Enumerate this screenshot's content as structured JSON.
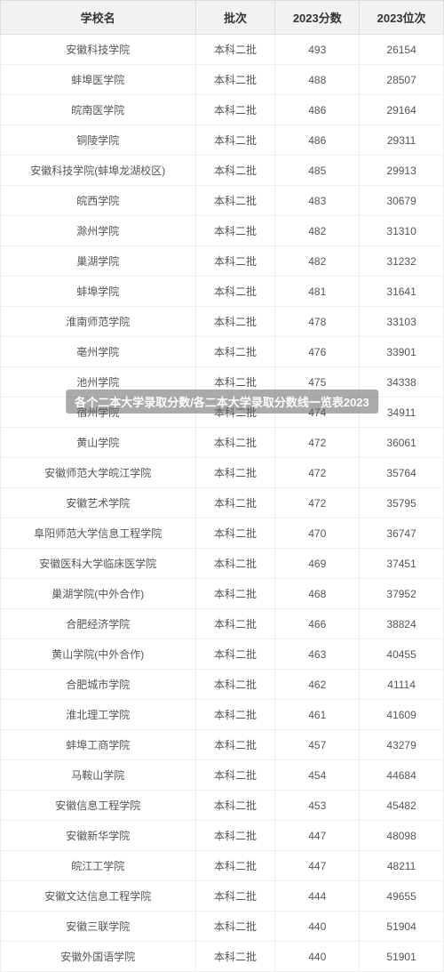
{
  "table": {
    "headers": {
      "school": "学校名",
      "batch": "批次",
      "score": "2023分数",
      "rank": "2023位次"
    },
    "batch_label": "本科二批",
    "rows": [
      {
        "school": "安徽科技学院",
        "score": "493",
        "rank": "26154"
      },
      {
        "school": "蚌埠医学院",
        "score": "488",
        "rank": "28507"
      },
      {
        "school": "皖南医学院",
        "score": "486",
        "rank": "29164"
      },
      {
        "school": "铜陵学院",
        "score": "486",
        "rank": "29311"
      },
      {
        "school": "安徽科技学院(蚌埠龙湖校区)",
        "score": "485",
        "rank": "29913"
      },
      {
        "school": "皖西学院",
        "score": "483",
        "rank": "30679"
      },
      {
        "school": "滁州学院",
        "score": "482",
        "rank": "31310"
      },
      {
        "school": "巢湖学院",
        "score": "482",
        "rank": "31232"
      },
      {
        "school": "蚌埠学院",
        "score": "481",
        "rank": "31641"
      },
      {
        "school": "淮南师范学院",
        "score": "478",
        "rank": "33103"
      },
      {
        "school": "亳州学院",
        "score": "476",
        "rank": "33901"
      },
      {
        "school": "池州学院",
        "score": "475",
        "rank": "34338"
      },
      {
        "school": "宿州学院",
        "score": "474",
        "rank": "34911"
      },
      {
        "school": "黄山学院",
        "score": "472",
        "rank": "36061"
      },
      {
        "school": "安徽师范大学皖江学院",
        "score": "472",
        "rank": "35764"
      },
      {
        "school": "安徽艺术学院",
        "score": "472",
        "rank": "35795"
      },
      {
        "school": "阜阳师范大学信息工程学院",
        "score": "470",
        "rank": "36747"
      },
      {
        "school": "安徽医科大学临床医学院",
        "score": "469",
        "rank": "37451"
      },
      {
        "school": "巢湖学院(中外合作)",
        "score": "468",
        "rank": "37952"
      },
      {
        "school": "合肥经济学院",
        "score": "466",
        "rank": "38824"
      },
      {
        "school": "黄山学院(中外合作)",
        "score": "463",
        "rank": "40455"
      },
      {
        "school": "合肥城市学院",
        "score": "462",
        "rank": "41114"
      },
      {
        "school": "淮北理工学院",
        "score": "461",
        "rank": "41609"
      },
      {
        "school": "蚌埠工商学院",
        "score": "457",
        "rank": "43279"
      },
      {
        "school": "马鞍山学院",
        "score": "454",
        "rank": "44684"
      },
      {
        "school": "安徽信息工程学院",
        "score": "453",
        "rank": "45482"
      },
      {
        "school": "安徽新华学院",
        "score": "447",
        "rank": "48098"
      },
      {
        "school": "皖江工学院",
        "score": "447",
        "rank": "48211"
      },
      {
        "school": "安徽文达信息工程学院",
        "score": "444",
        "rank": "49655"
      },
      {
        "school": "安徽三联学院",
        "score": "440",
        "rank": "51904"
      },
      {
        "school": "安徽外国语学院",
        "score": "440",
        "rank": "51901"
      }
    ]
  },
  "watermark": "各个二本大学录取分数/各二本大学录取分数线一览表2023",
  "styles": {
    "header_bg": "#f2f2f2",
    "header_text": "#333333",
    "cell_text": "#555555",
    "border_header": "#dddddd",
    "border_cell": "#eeeeee",
    "watermark_bg": "rgba(100,100,100,0.55)",
    "watermark_text": "#ffffff",
    "font_family": "Microsoft YaHei",
    "header_fontsize": 13,
    "cell_fontsize": 12,
    "col_widths": {
      "name": "44%",
      "batch": "18%",
      "score": "19%",
      "rank": "19%"
    }
  }
}
